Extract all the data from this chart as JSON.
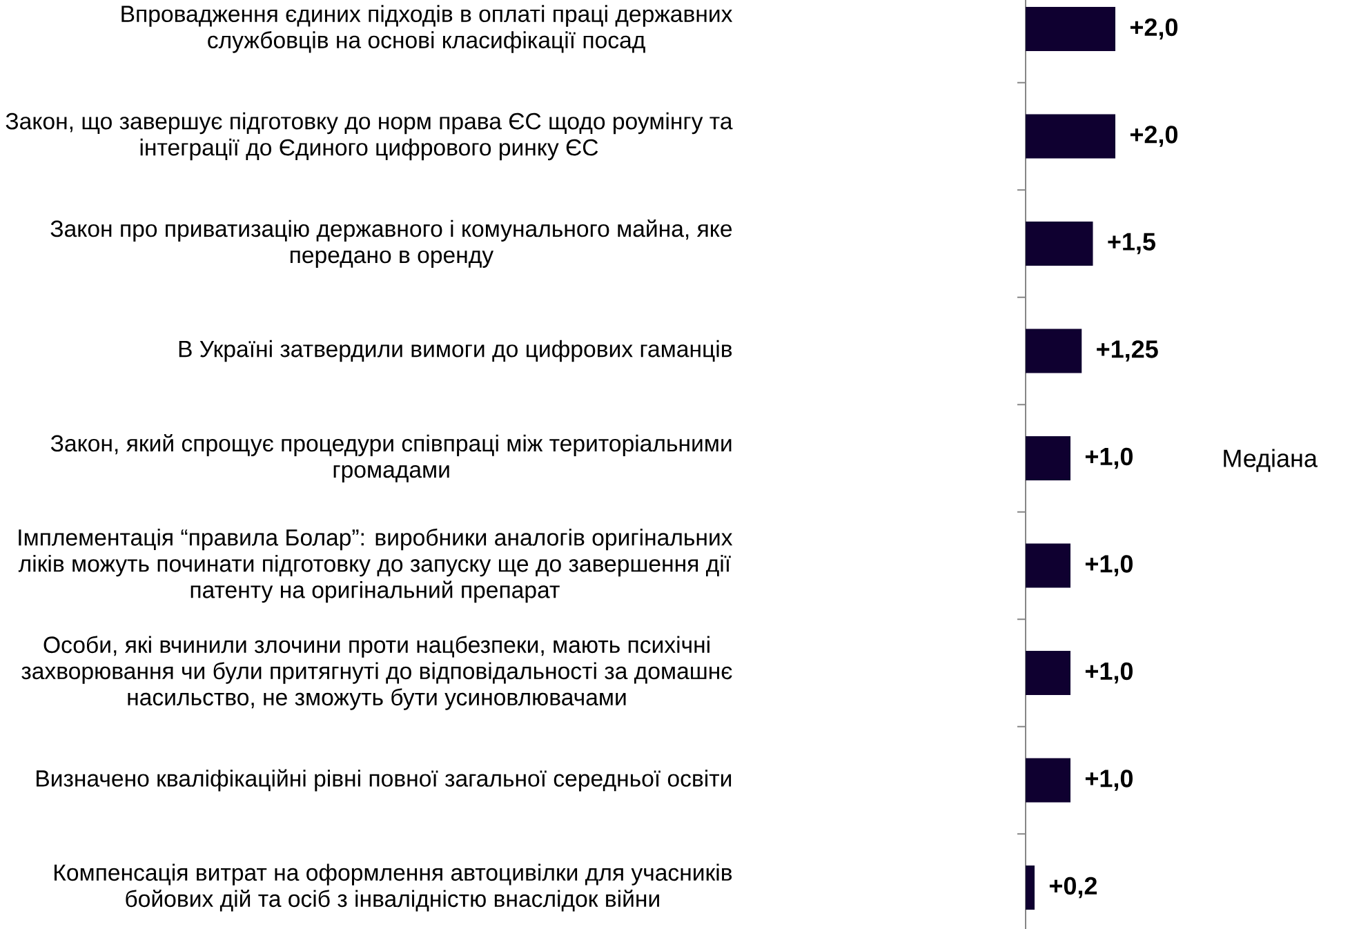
{
  "chart_data": {
    "type": "bar",
    "orientation": "horizontal",
    "categories": [
      "Впровадження єдиних підходів в оплаті праці державних службовців на основі класифікації посад",
      "Закон, що завершує підготовку до норм права ЄС щодо роумінгу та інтеграції до Єдиного цифрового ринку ЄС",
      "Закон про приватизацію державного і комунального майна, яке передано в оренду",
      "В Україні затвердили вимоги до цифрових гаманців",
      "Закон, який спрощує процедури співпраці між територіальними громадами",
      "Імплементація “правила Болар”: виробники аналогів оригінальних ліків можуть починати підготовку до запуску ще до завершення дії патенту на оригінальний препарат",
      "Особи, які вчинили злочини проти нацбезпеки, мають психічні захворювання чи були притягнуті до відповідальності за домашнє насильство, не зможуть бути усиновлювачами",
      "Визначено кваліфікаційні рівні повної загальної середньої освіти",
      "Компенсація витрат на оформлення автоцивілки для учасників бойових дій та осіб з інвалідністю внаслідок війни"
    ],
    "series": [
      {
        "name": "Медіана",
        "color": "#0f0030",
        "values": [
          2.0,
          2.0,
          1.5,
          1.25,
          1.0,
          1.0,
          1.0,
          1.0,
          0.2
        ],
        "value_labels": [
          "+2,0",
          "+2,0",
          "+1,5",
          "+1,25",
          "+1,0",
          "+1,0",
          "+1,0",
          "+1,0",
          "+0,2"
        ]
      }
    ],
    "tick_labels": "y",
    "legend": "right"
  }
}
